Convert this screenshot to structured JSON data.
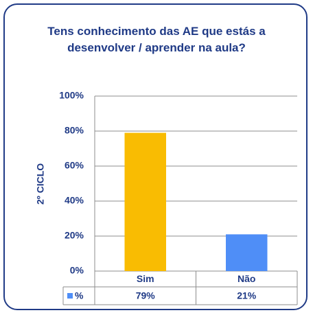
{
  "chart_data": {
    "type": "bar",
    "title": "Tens conhecimento das AE que estás a desenvolver / aprender na aula?",
    "y_label": "2º CICLO",
    "categories": [
      "Sim",
      "Não"
    ],
    "series": [
      {
        "name": "%",
        "color": "#4f8ef7",
        "colors": [
          "#f9bc02",
          "#4f8ef7"
        ],
        "values": [
          79,
          21
        ],
        "value_labels": [
          "79%",
          "21%"
        ]
      }
    ],
    "ylim": [
      0,
      100
    ],
    "yticks": [
      {
        "value": 0,
        "label": "0%"
      },
      {
        "value": 20,
        "label": "20%"
      },
      {
        "value": 40,
        "label": "40%"
      },
      {
        "value": 60,
        "label": "60%"
      },
      {
        "value": 80,
        "label": "80%"
      },
      {
        "value": 100,
        "label": "100%"
      }
    ],
    "grid": true
  }
}
